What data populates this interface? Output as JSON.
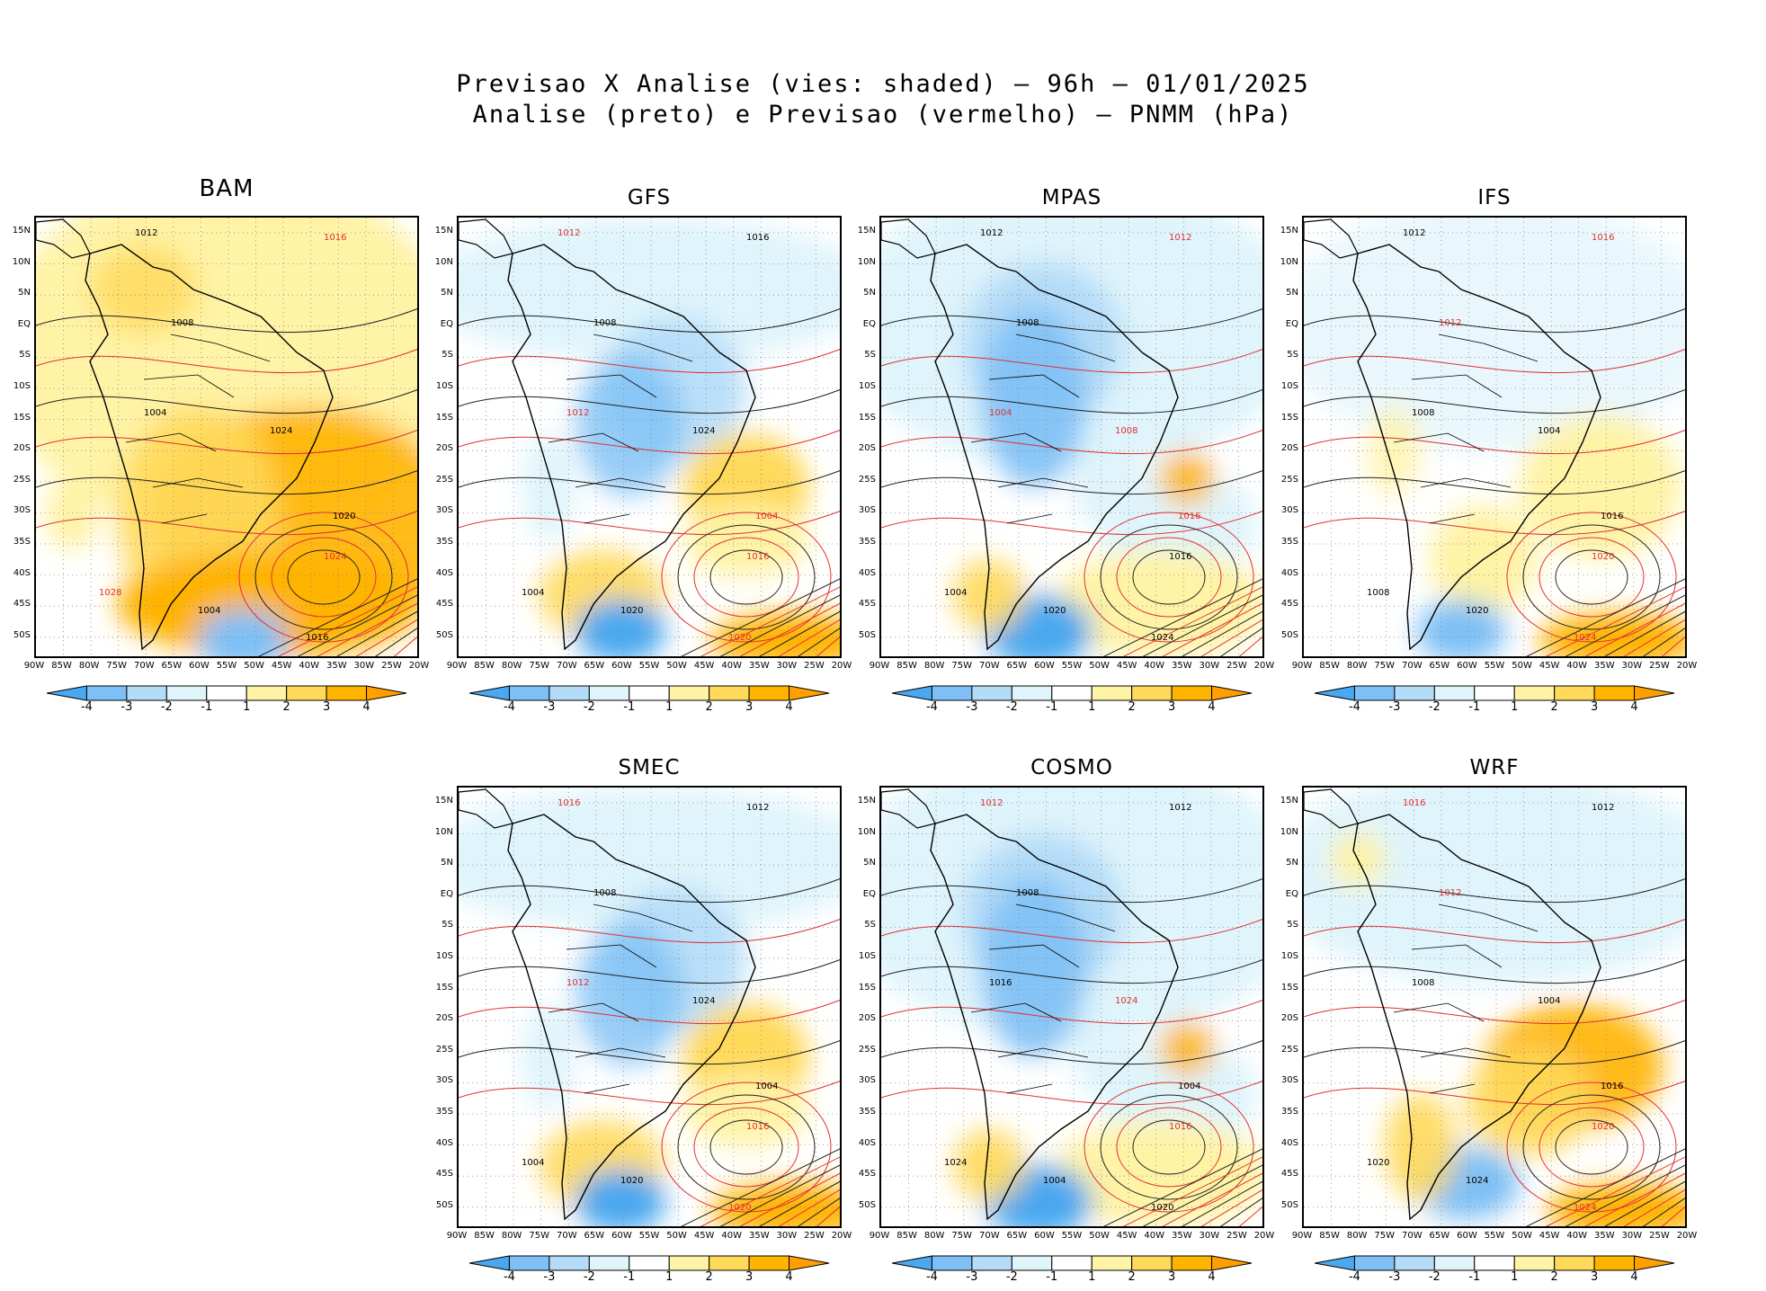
{
  "title_line1": "Previsao X Analise (vies: shaded) – 96h – 01/01/2025",
  "title_line2": "Analise (preto) e Previsao (vermelho) – PNMM (hPa)",
  "lat_labels": [
    "15N",
    "10N",
    "5N",
    "EQ",
    "5S",
    "10S",
    "15S",
    "20S",
    "25S",
    "30S",
    "35S",
    "40S",
    "45S",
    "50S"
  ],
  "lon_labels": [
    "90W",
    "85W",
    "80W",
    "75W",
    "70W",
    "65W",
    "60W",
    "55W",
    "50W",
    "45W",
    "40W",
    "35W",
    "30W",
    "25W",
    "20W"
  ],
  "colorbar": {
    "labels": [
      "-4",
      "-3",
      "-2",
      "-1",
      "1",
      "2",
      "3",
      "4"
    ],
    "colors": [
      "#4aa8f0",
      "#7ec0f5",
      "#b4dcf8",
      "#dff4fb",
      "#ffffff",
      "#fff3a6",
      "#ffd95a",
      "#ffb400",
      "#ffa000"
    ]
  },
  "panels": [
    {
      "name": "BAM",
      "theme": "warm",
      "contours": [
        {
          "t": "1012",
          "c": "black"
        },
        {
          "t": "1016",
          "c": "red"
        },
        {
          "t": "1008",
          "c": "black"
        },
        {
          "t": "1004",
          "c": "black"
        },
        {
          "t": "1020",
          "c": "black"
        },
        {
          "t": "1024",
          "c": "red"
        },
        {
          "t": "1016",
          "c": "black"
        },
        {
          "t": "1024",
          "c": "black"
        },
        {
          "t": "1028",
          "c": "red"
        },
        {
          "t": "1004",
          "c": "black"
        }
      ]
    },
    {
      "name": "GFS",
      "theme": "mixed",
      "contours": [
        {
          "t": "1012",
          "c": "red"
        },
        {
          "t": "1016",
          "c": "black"
        },
        {
          "t": "1008",
          "c": "black"
        },
        {
          "t": "1012",
          "c": "red"
        },
        {
          "t": "1004",
          "c": "red"
        },
        {
          "t": "1016",
          "c": "red"
        },
        {
          "t": "1020",
          "c": "red"
        },
        {
          "t": "1024",
          "c": "black"
        },
        {
          "t": "1004",
          "c": "black"
        },
        {
          "t": "1020",
          "c": "black"
        }
      ]
    },
    {
      "name": "MPAS",
      "theme": "cool",
      "contours": [
        {
          "t": "1012",
          "c": "black"
        },
        {
          "t": "1012",
          "c": "red"
        },
        {
          "t": "1008",
          "c": "black"
        },
        {
          "t": "1004",
          "c": "red"
        },
        {
          "t": "1016",
          "c": "red"
        },
        {
          "t": "1016",
          "c": "black"
        },
        {
          "t": "1024",
          "c": "black"
        },
        {
          "t": "1008",
          "c": "red"
        },
        {
          "t": "1004",
          "c": "black"
        },
        {
          "t": "1020",
          "c": "black"
        }
      ]
    },
    {
      "name": "IFS",
      "theme": "neutral",
      "contours": [
        {
          "t": "1012",
          "c": "black"
        },
        {
          "t": "1016",
          "c": "red"
        },
        {
          "t": "1012",
          "c": "red"
        },
        {
          "t": "1008",
          "c": "black"
        },
        {
          "t": "1016",
          "c": "black"
        },
        {
          "t": "1020",
          "c": "red"
        },
        {
          "t": "1024",
          "c": "red"
        },
        {
          "t": "1004",
          "c": "black"
        },
        {
          "t": "1008",
          "c": "black"
        },
        {
          "t": "1020",
          "c": "black"
        }
      ]
    },
    {
      "name": "SMEC",
      "theme": "mixed",
      "contours": [
        {
          "t": "1016",
          "c": "red"
        },
        {
          "t": "1012",
          "c": "black"
        },
        {
          "t": "1008",
          "c": "black"
        },
        {
          "t": "1012",
          "c": "red"
        },
        {
          "t": "1004",
          "c": "black"
        },
        {
          "t": "1016",
          "c": "red"
        },
        {
          "t": "1020",
          "c": "red"
        },
        {
          "t": "1024",
          "c": "black"
        },
        {
          "t": "1004",
          "c": "black"
        },
        {
          "t": "1020",
          "c": "black"
        }
      ]
    },
    {
      "name": "COSMO",
      "theme": "cool",
      "contours": [
        {
          "t": "1012",
          "c": "red"
        },
        {
          "t": "1012",
          "c": "black"
        },
        {
          "t": "1008",
          "c": "black"
        },
        {
          "t": "1016",
          "c": "black"
        },
        {
          "t": "1004",
          "c": "black"
        },
        {
          "t": "1016",
          "c": "red"
        },
        {
          "t": "1020",
          "c": "black"
        },
        {
          "t": "1024",
          "c": "red"
        },
        {
          "t": "1024",
          "c": "black"
        },
        {
          "t": "1004",
          "c": "black"
        }
      ]
    },
    {
      "name": "WRF",
      "theme": "mixedwarm",
      "contours": [
        {
          "t": "1016",
          "c": "red"
        },
        {
          "t": "1012",
          "c": "black"
        },
        {
          "t": "1012",
          "c": "red"
        },
        {
          "t": "1008",
          "c": "black"
        },
        {
          "t": "1016",
          "c": "black"
        },
        {
          "t": "1020",
          "c": "red"
        },
        {
          "t": "1024",
          "c": "red"
        },
        {
          "t": "1004",
          "c": "black"
        },
        {
          "t": "1020",
          "c": "black"
        },
        {
          "t": "1024",
          "c": "black"
        }
      ]
    }
  ]
}
